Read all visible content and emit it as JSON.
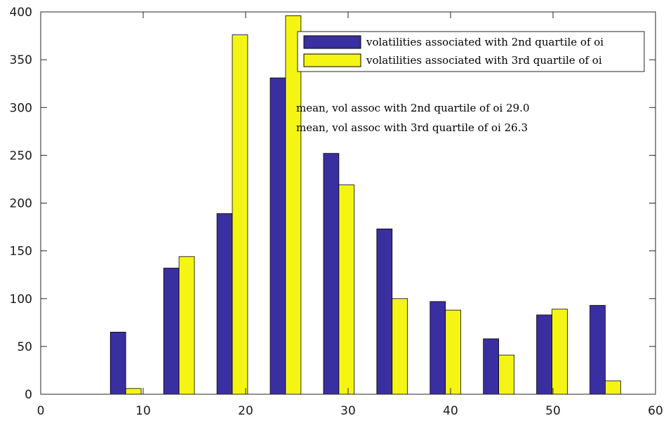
{
  "chart_data": {
    "type": "bar",
    "xlim": [
      0,
      60
    ],
    "ylim": [
      0,
      400
    ],
    "xticks": [
      "0",
      "10",
      "20",
      "30",
      "40",
      "50",
      "60"
    ],
    "yticks": [
      "0",
      "50",
      "100",
      "150",
      "200",
      "250",
      "300",
      "350",
      "400"
    ],
    "categories": [
      8.3,
      13.5,
      18.7,
      23.9,
      29.1,
      34.3,
      39.5,
      44.7,
      49.9,
      55.1
    ],
    "series": [
      {
        "name": "volatilities associated with 2nd quartile of oi",
        "color": "#3a2fa0",
        "values": [
          65,
          132,
          189,
          331,
          252,
          173,
          97,
          58,
          83,
          93
        ]
      },
      {
        "name": "volatilities associated with 3rd quartile of oi",
        "color": "#f5f514",
        "values": [
          6,
          144,
          376,
          396,
          219,
          100,
          88,
          41,
          89,
          14
        ]
      }
    ],
    "legend_position": "top-right",
    "grid": false,
    "annotations": [
      "mean, vol assoc with 2nd quartile of oi 29.0",
      "mean, vol assoc with 3rd quartile of oi 26.3"
    ]
  }
}
